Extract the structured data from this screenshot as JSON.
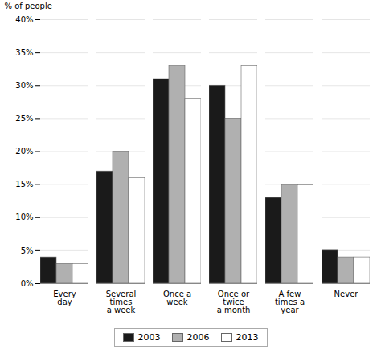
{
  "chart_data": {
    "type": "bar",
    "categories": [
      "Every\nday",
      "Several\ntimes\na week",
      "Once a\nweek",
      "Once or\ntwice\na month",
      "A few\ntimes a\nyear",
      "Never"
    ],
    "series": [
      {
        "name": "2003",
        "color": "#1a1a1a",
        "values": [
          4,
          17,
          31,
          30,
          13,
          5
        ]
      },
      {
        "name": "2006",
        "color": "#b0b0b0",
        "values": [
          3,
          20,
          33,
          25,
          15,
          4
        ]
      },
      {
        "name": "2013",
        "color": "#ffffff",
        "values": [
          3,
          16,
          28,
          33,
          15,
          4
        ]
      }
    ],
    "ylabel": "% of people",
    "ylim": [
      0,
      40
    ],
    "yticks": [
      {
        "value": 0,
        "label": "0%"
      },
      {
        "value": 5,
        "label": "5%"
      },
      {
        "value": 10,
        "label": "10%"
      },
      {
        "value": 15,
        "label": "15%"
      },
      {
        "value": 20,
        "label": "20%"
      },
      {
        "value": 25,
        "label": "25%"
      },
      {
        "value": 30,
        "label": "30%"
      },
      {
        "value": 35,
        "label": "35%"
      },
      {
        "value": 40,
        "label": "40%"
      }
    ],
    "grid": true,
    "legend": "bottom"
  }
}
